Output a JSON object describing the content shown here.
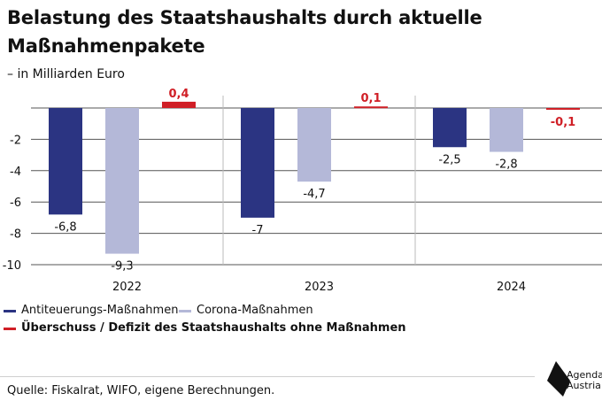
{
  "title": "Belastung des Staatshaushalts durch aktuelle Maßnahmenpakete",
  "subtitle": "– in Milliarden Euro",
  "chart_data": {
    "type": "bar",
    "categories": [
      "2022",
      "2023",
      "2024"
    ],
    "series": [
      {
        "name": "Antiteuerungs-Maßnahmen",
        "color": "#2b3482",
        "values": [
          -6.8,
          -7,
          -2.5
        ],
        "labels": [
          "-6,8",
          "-7",
          "-2,5"
        ]
      },
      {
        "name": "Corona-Maßnahmen",
        "color": "#b4b8d8",
        "values": [
          -9.3,
          -4.7,
          -2.8
        ],
        "labels": [
          "-9,3",
          "-4,7",
          "-2,8"
        ]
      },
      {
        "name": "Überschuss / Defizit des Staatshaushalts ohne Maßnahmen",
        "color": "#d01f26",
        "values": [
          0.4,
          0.1,
          -0.1
        ],
        "labels": [
          "0,4",
          "0,1",
          "-0,1"
        ]
      }
    ],
    "ylim": [
      -10,
      0.5
    ],
    "yticks": [
      -10,
      -8,
      -6,
      -4,
      -2
    ],
    "ytick_labels": [
      "-10",
      "-8",
      "-6",
      "-4",
      "-2"
    ],
    "grid": true,
    "legend_position": "bottom-left"
  },
  "legend": [
    {
      "label": "Antiteuerungs-Maßnahmen",
      "color": "#2b3482"
    },
    {
      "label": "Corona-Maßnahmen",
      "color": "#b4b8d8"
    },
    {
      "label": "Überschuss / Defizit des Staatshaushalts ohne Maßnahmen",
      "color": "#d01f26"
    }
  ],
  "source": "Quelle: Fiskalrat, WIFO, eigene Berechnungen.",
  "logo": {
    "line1": "Agenda",
    "line2": "Austria"
  }
}
